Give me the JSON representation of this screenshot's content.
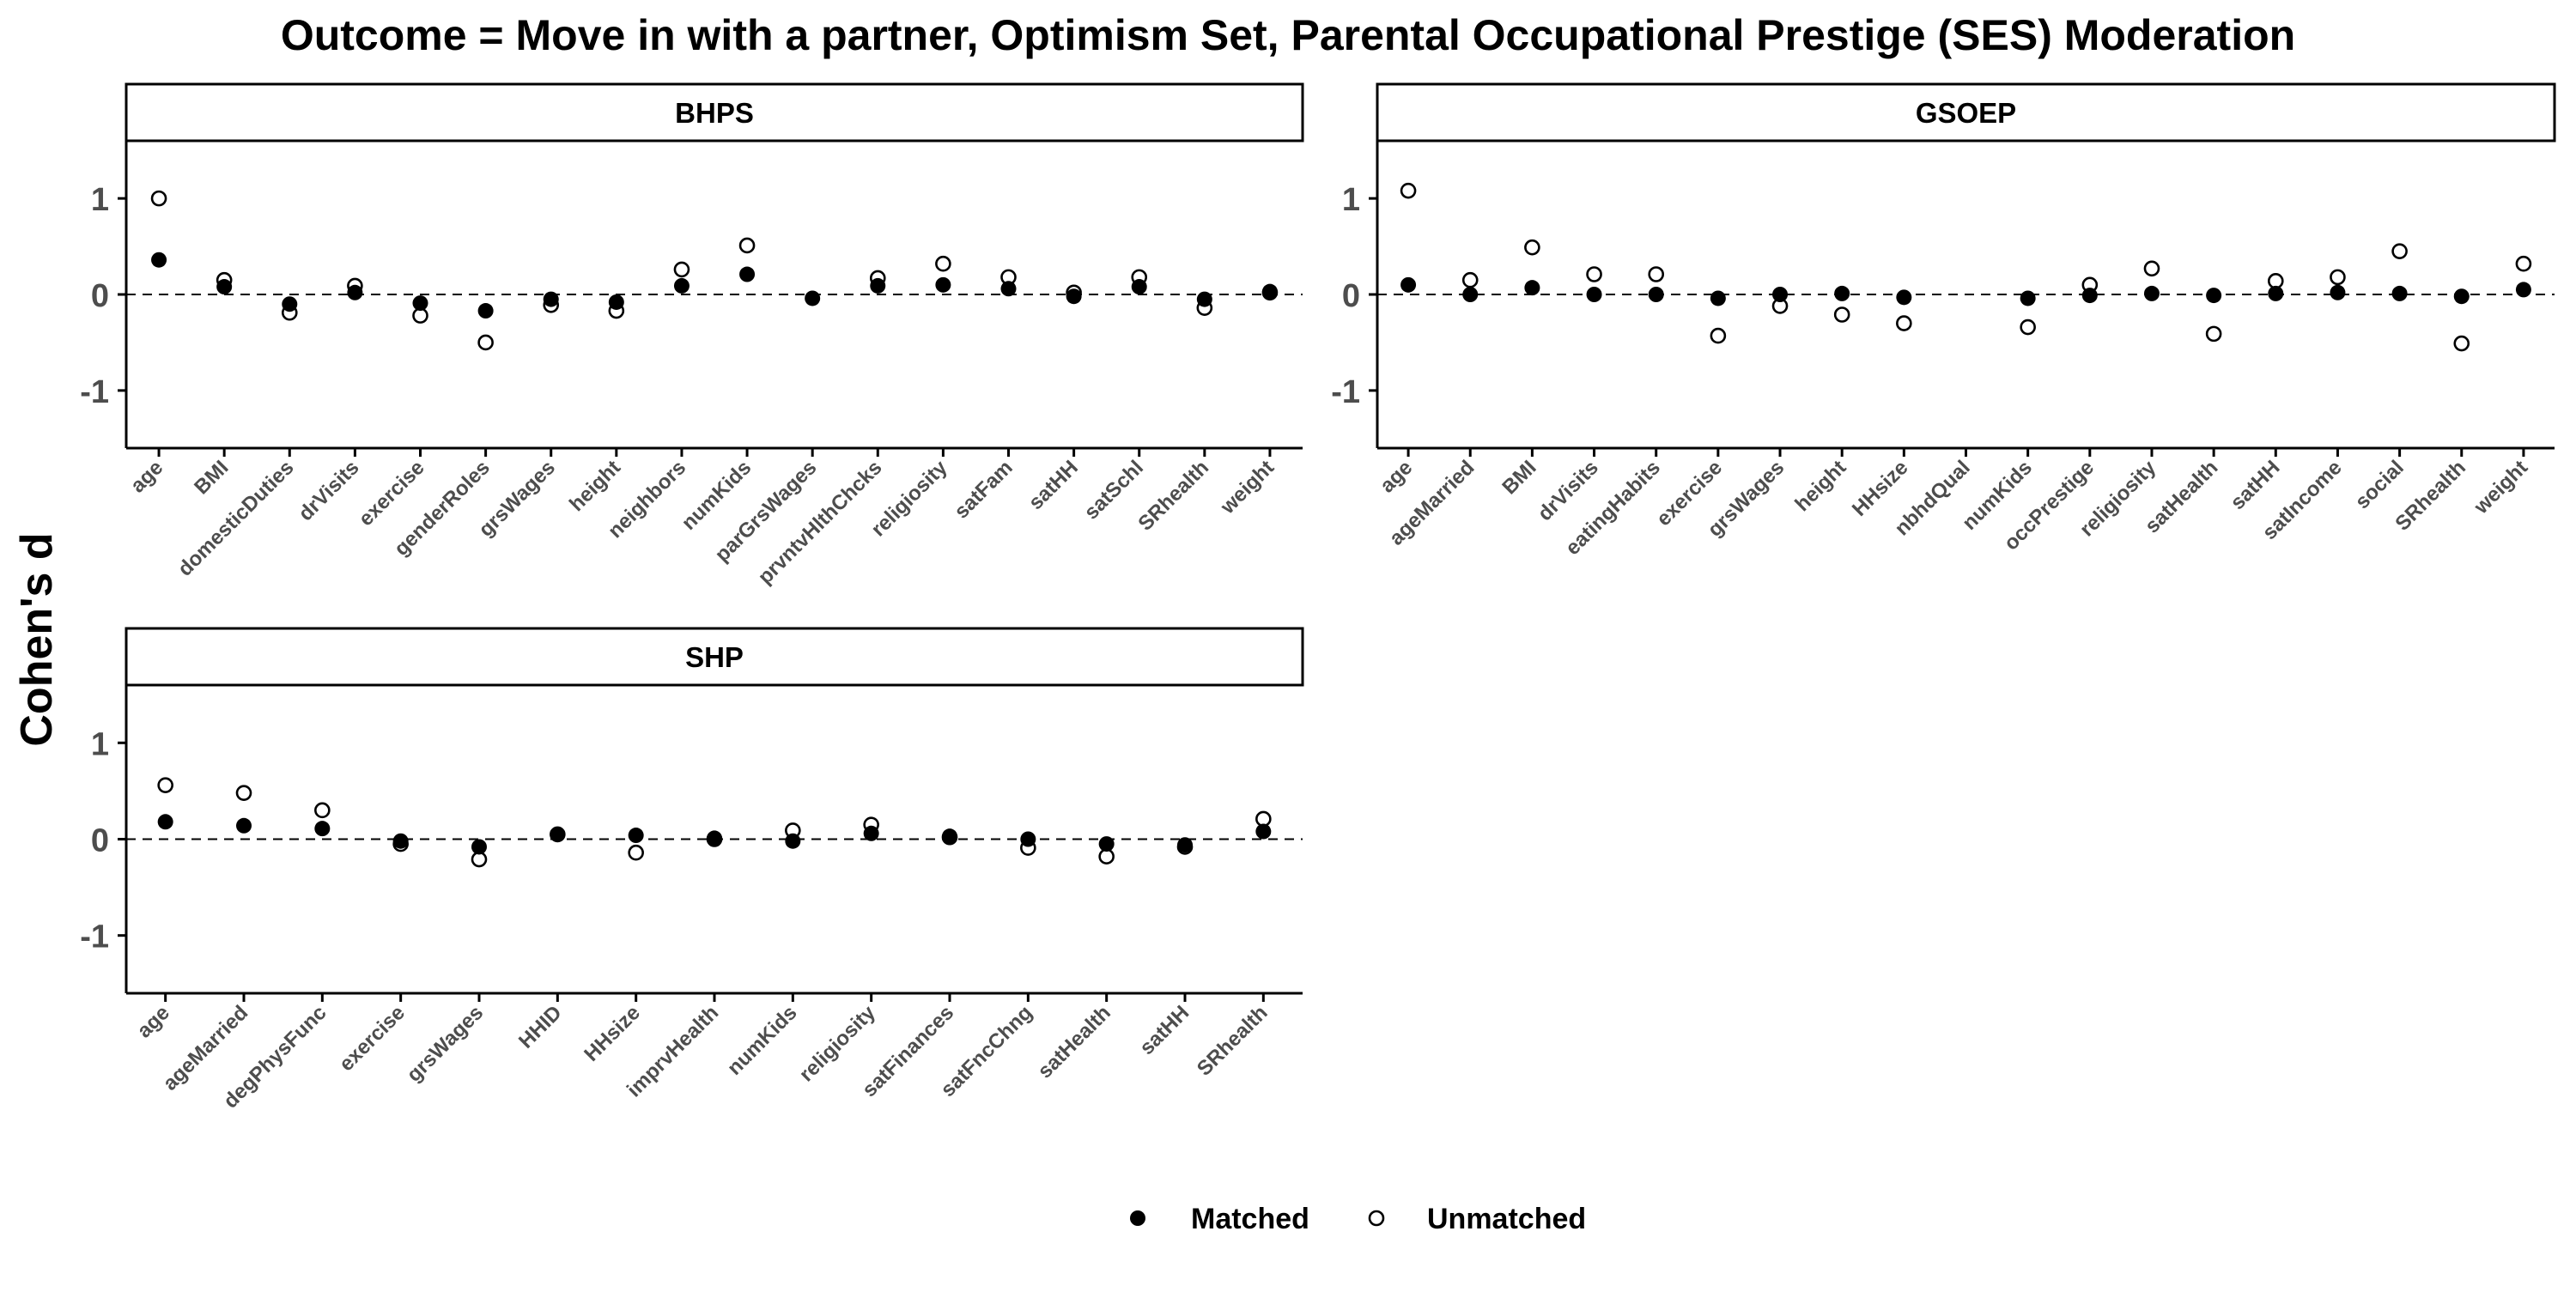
{
  "title": "Outcome = Move in with a partner, Optimism Set, Parental Occupational Prestige (SES) Moderation",
  "ylabel": "Cohen's d",
  "colors": {
    "matched": "#000000",
    "unmatched_fill": "#ffffff",
    "unmatched_stroke": "#000000",
    "refline": "#000000",
    "strip_fill": "#ffffff"
  },
  "legend": {
    "placement": "bottom",
    "items": [
      {
        "label": "Matched",
        "marker": "filled-circle"
      },
      {
        "label": "Unmatched",
        "marker": "open-circle"
      }
    ]
  },
  "chart_data": [
    {
      "type": "scatter",
      "panel": "BHPS",
      "ylim": [
        -1.6,
        1.6
      ],
      "yticks": [
        -1,
        0,
        1
      ],
      "reference_line": 0,
      "categories": [
        "age",
        "BMI",
        "domesticDuties",
        "drVisits",
        "exercise",
        "genderRoles",
        "grsWages",
        "height",
        "neighbors",
        "numKids",
        "parGrsWages",
        "prvntvHlthChcks",
        "religiosity",
        "satFam",
        "satHH",
        "satSchl",
        "SRhealth",
        "weight"
      ],
      "series": [
        {
          "name": "Matched",
          "values": [
            0.36,
            0.08,
            -0.1,
            0.02,
            -0.09,
            -0.17,
            -0.05,
            -0.08,
            0.09,
            0.21,
            -0.04,
            0.09,
            0.1,
            0.06,
            -0.02,
            0.08,
            -0.05,
            0.03
          ]
        },
        {
          "name": "Unmatched",
          "values": [
            1.0,
            0.15,
            -0.19,
            0.09,
            -0.22,
            -0.5,
            -0.11,
            -0.17,
            0.26,
            0.51,
            null,
            0.17,
            0.32,
            0.18,
            0.02,
            0.18,
            -0.14,
            0.02
          ]
        }
      ]
    },
    {
      "type": "scatter",
      "panel": "GSOEP",
      "ylim": [
        -1.6,
        1.6
      ],
      "yticks": [
        -1,
        0,
        1
      ],
      "reference_line": 0,
      "categories": [
        "age",
        "ageMarried",
        "BMI",
        "drVisits",
        "eatingHabits",
        "exercise",
        "grsWages",
        "height",
        "HHsize",
        "nbhdQual",
        "numKids",
        "occPrestige",
        "religiosity",
        "satHealth",
        "satHH",
        "satIncome",
        "social",
        "SRhealth",
        "weight"
      ],
      "series": [
        {
          "name": "Matched",
          "values": [
            0.1,
            0.0,
            0.07,
            0.0,
            0.0,
            -0.04,
            0.0,
            0.01,
            -0.03,
            null,
            -0.04,
            -0.01,
            0.01,
            -0.01,
            0.01,
            0.02,
            0.01,
            -0.02,
            0.05
          ]
        },
        {
          "name": "Unmatched",
          "values": [
            1.08,
            0.15,
            0.49,
            0.21,
            0.21,
            -0.43,
            -0.12,
            -0.21,
            -0.3,
            null,
            -0.34,
            0.1,
            0.27,
            -0.41,
            0.14,
            0.18,
            0.45,
            -0.51,
            0.32
          ]
        }
      ]
    },
    {
      "type": "scatter",
      "panel": "SHP",
      "ylim": [
        -1.6,
        1.6
      ],
      "yticks": [
        -1,
        0,
        1
      ],
      "reference_line": 0,
      "categories": [
        "age",
        "ageMarried",
        "degPhysFunc",
        "exercise",
        "grsWages",
        "HHID",
        "HHsize",
        "imprvHealth",
        "numKids",
        "religiosity",
        "satFinances",
        "satFncChng",
        "satHealth",
        "satHH",
        "SRhealth"
      ],
      "series": [
        {
          "name": "Matched",
          "values": [
            0.18,
            0.14,
            0.11,
            -0.02,
            -0.08,
            0.05,
            0.04,
            0.01,
            -0.02,
            0.06,
            0.03,
            0.0,
            -0.05,
            -0.06,
            0.08
          ]
        },
        {
          "name": "Unmatched",
          "values": [
            0.56,
            0.48,
            0.3,
            -0.05,
            -0.21,
            0.05,
            -0.14,
            0.0,
            0.09,
            0.15,
            0.02,
            -0.09,
            -0.18,
            -0.08,
            0.21
          ]
        }
      ]
    }
  ]
}
